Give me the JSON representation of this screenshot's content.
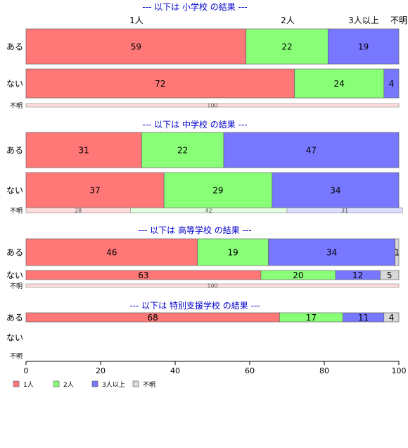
{
  "chart_data": {
    "type": "bar",
    "orientation": "horizontal",
    "stacked": true,
    "xlim": [
      0,
      100
    ],
    "x_ticks": [
      0,
      20,
      40,
      60,
      80,
      100
    ],
    "column_headers": [
      "1人",
      "2人",
      "3人以上",
      "不明"
    ],
    "series_names": [
      "1人",
      "2人",
      "3人以上",
      "不明"
    ],
    "colors": [
      "#ff7777",
      "#88ff77",
      "#7777ff",
      "#d9d9d9"
    ],
    "legend": {
      "position": "bottom-left",
      "items": [
        "1人",
        "2人",
        "3人以上",
        "不明"
      ]
    },
    "title_color": "#0000cc",
    "groups": [
      {
        "title": "--- 以下は 小学校 の結果 ---",
        "rows": [
          {
            "label": "ある",
            "values": [
              59,
              22,
              19,
              0
            ],
            "pale": false
          },
          {
            "label": "ない",
            "values": [
              72,
              24,
              4,
              0
            ],
            "pale": false
          },
          {
            "label": "不明",
            "values": [
              100,
              0,
              0,
              0
            ],
            "pale": true
          }
        ]
      },
      {
        "title": "--- 以下は 中学校 の結果 ---",
        "rows": [
          {
            "label": "ある",
            "values": [
              31,
              22,
              47,
              0
            ],
            "pale": false
          },
          {
            "label": "ない",
            "values": [
              37,
              29,
              34,
              0
            ],
            "pale": false
          },
          {
            "label": "不明",
            "values": [
              28,
              42,
              31,
              0
            ],
            "pale": true
          }
        ]
      },
      {
        "title": "--- 以下は 高等学校 の結果 ---",
        "rows": [
          {
            "label": "ある",
            "values": [
              46,
              19,
              34,
              1
            ],
            "pale": false
          },
          {
            "label": "ない",
            "values": [
              63,
              20,
              12,
              5
            ],
            "pale": false
          },
          {
            "label": "不明",
            "values": [
              100,
              0,
              0,
              0
            ],
            "pale": true
          }
        ]
      },
      {
        "title": "--- 以下は 特別支援学校 の結果 ---",
        "rows": [
          {
            "label": "ある",
            "values": [
              68,
              17,
              11,
              4
            ],
            "pale": false
          },
          {
            "label": "ない",
            "values": [],
            "pale": false
          },
          {
            "label": "不明",
            "values": [],
            "pale": true
          }
        ]
      }
    ]
  }
}
